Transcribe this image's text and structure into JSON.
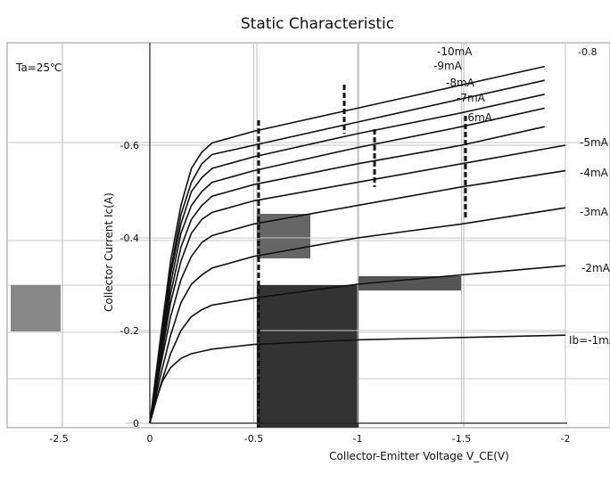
{
  "chart_data": {
    "type": "line",
    "title": "Static Characteristic",
    "annotation": "Ta=25℃",
    "xlabel": "Collector-Emitter Voltage  V_CE(V)",
    "ylabel": "Collector  Current   Ic(A)",
    "xlim": [
      0,
      -2
    ],
    "ylim": [
      0,
      -0.7
    ],
    "x_ticks": [
      "0",
      "-0.5",
      "-1",
      "-1.5",
      "-2"
    ],
    "y_ticks": [
      "0",
      "-0.2",
      "-0.4",
      "-0.6"
    ],
    "x_ticks_extra": [
      "-2.5"
    ],
    "y_ticks_extra": [
      "-0.8"
    ],
    "grid": true,
    "series": [
      {
        "name": "Ib=-1mA",
        "x": [
          0,
          -0.03,
          -0.06,
          -0.1,
          -0.15,
          -0.2,
          -0.25,
          -0.3,
          -0.5,
          -1,
          -1.5,
          -2
        ],
        "y": [
          0,
          -0.05,
          -0.09,
          -0.12,
          -0.14,
          -0.15,
          -0.155,
          -0.16,
          -0.17,
          -0.18,
          -0.185,
          -0.19
        ]
      },
      {
        "name": "-2mA",
        "x": [
          0,
          -0.05,
          -0.1,
          -0.15,
          -0.2,
          -0.25,
          -0.3,
          -0.5,
          -1,
          -1.5,
          -2
        ],
        "y": [
          0,
          -0.08,
          -0.15,
          -0.2,
          -0.23,
          -0.245,
          -0.255,
          -0.27,
          -0.3,
          -0.32,
          -0.34
        ]
      },
      {
        "name": "-3mA",
        "x": [
          0,
          -0.05,
          -0.1,
          -0.15,
          -0.2,
          -0.25,
          -0.3,
          -0.5,
          -1,
          -1.5,
          -2
        ],
        "y": [
          0,
          -0.1,
          -0.19,
          -0.26,
          -0.3,
          -0.32,
          -0.335,
          -0.36,
          -0.4,
          -0.43,
          -0.465
        ]
      },
      {
        "name": "-4mA",
        "x": [
          0,
          -0.05,
          -0.1,
          -0.15,
          -0.2,
          -0.25,
          -0.3,
          -0.5,
          -1,
          -1.5,
          -2
        ],
        "y": [
          0,
          -0.12,
          -0.23,
          -0.31,
          -0.36,
          -0.39,
          -0.405,
          -0.43,
          -0.47,
          -0.51,
          -0.545
        ]
      },
      {
        "name": "-5mA",
        "x": [
          0,
          -0.05,
          -0.1,
          -0.15,
          -0.2,
          -0.25,
          -0.3,
          -0.5,
          -1,
          -1.5,
          -2
        ],
        "y": [
          0,
          -0.13,
          -0.26,
          -0.35,
          -0.41,
          -0.44,
          -0.455,
          -0.48,
          -0.52,
          -0.56,
          -0.6
        ]
      },
      {
        "name": "-6mA",
        "x": [
          0,
          -0.05,
          -0.1,
          -0.15,
          -0.2,
          -0.25,
          -0.3,
          -0.5,
          -1,
          -1.5,
          -1.9
        ],
        "y": [
          0,
          -0.14,
          -0.28,
          -0.38,
          -0.44,
          -0.47,
          -0.49,
          -0.515,
          -0.56,
          -0.6,
          -0.64
        ]
      },
      {
        "name": "-7mA",
        "x": [
          0,
          -0.05,
          -0.1,
          -0.15,
          -0.2,
          -0.25,
          -0.3,
          -0.5,
          -1,
          -1.5,
          -1.9
        ],
        "y": [
          0,
          -0.15,
          -0.3,
          -0.41,
          -0.47,
          -0.5,
          -0.52,
          -0.545,
          -0.595,
          -0.64,
          -0.68
        ]
      },
      {
        "name": "-8mA",
        "x": [
          0,
          -0.05,
          -0.1,
          -0.15,
          -0.2,
          -0.25,
          -0.3,
          -0.5,
          -1,
          -1.5,
          -1.9
        ],
        "y": [
          0,
          -0.16,
          -0.32,
          -0.43,
          -0.5,
          -0.53,
          -0.55,
          -0.575,
          -0.625,
          -0.67,
          -0.71
        ]
      },
      {
        "name": "-9mA",
        "x": [
          0,
          -0.05,
          -0.1,
          -0.15,
          -0.2,
          -0.25,
          -0.3,
          -0.5,
          -1,
          -1.5,
          -1.9
        ],
        "y": [
          0,
          -0.17,
          -0.33,
          -0.45,
          -0.52,
          -0.56,
          -0.58,
          -0.6,
          -0.65,
          -0.7,
          -0.74
        ]
      },
      {
        "name": "-10mA",
        "x": [
          0,
          -0.05,
          -0.1,
          -0.15,
          -0.2,
          -0.25,
          -0.3,
          -0.5,
          -1,
          -1.5,
          -1.9
        ],
        "y": [
          0,
          -0.18,
          -0.35,
          -0.47,
          -0.55,
          -0.585,
          -0.605,
          -0.63,
          -0.68,
          -0.73,
          -0.77
        ]
      }
    ]
  }
}
